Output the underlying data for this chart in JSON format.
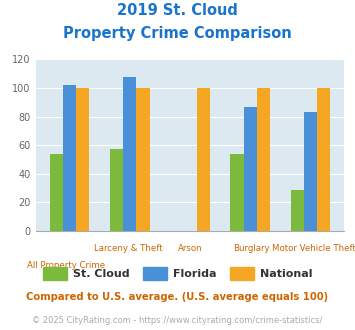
{
  "title_line1": "2019 St. Cloud",
  "title_line2": "Property Crime Comparison",
  "title_color": "#1874cd",
  "st_cloud": [
    54,
    57,
    0,
    54,
    29
  ],
  "florida": [
    102,
    108,
    0,
    87,
    83
  ],
  "national": [
    100,
    100,
    100,
    100,
    100
  ],
  "st_cloud_color": "#7cba3d",
  "florida_color": "#4a90d9",
  "national_color": "#f5a623",
  "bg_color": "#dce9f0",
  "ylim": [
    0,
    120
  ],
  "yticks": [
    0,
    20,
    40,
    60,
    80,
    100,
    120
  ],
  "top_labels": [
    "",
    "Larceny & Theft",
    "Arson",
    "Burglary",
    "Motor Vehicle Theft"
  ],
  "bottom_labels": [
    "All Property Crime",
    "",
    "",
    "",
    ""
  ],
  "footnote1": "Compared to U.S. average. (U.S. average equals 100)",
  "footnote2": "© 2025 CityRating.com - https://www.cityrating.com/crime-statistics/",
  "footnote1_color": "#cc6600",
  "footnote2_color": "#aaaaaa",
  "url_color": "#4a90d9"
}
